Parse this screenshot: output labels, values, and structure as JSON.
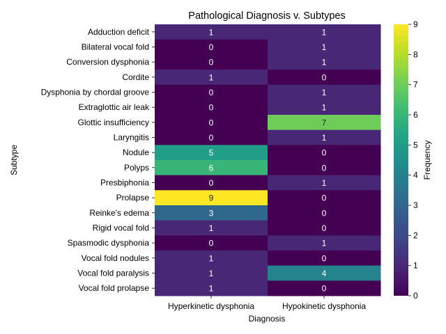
{
  "chart_data": {
    "type": "heatmap",
    "title": "Pathological Diagnosis v. Subtypes",
    "xlabel": "Diagnosis",
    "ylabel": "Subtype",
    "columns": [
      "Hyperkinetic dysphonia",
      "Hypokinetic dysphonia"
    ],
    "rows": [
      "Adduction deficit",
      "Bilateral vocal fold",
      "Conversion dysphonia",
      "Cordite",
      "Dysphonia by chordal groove",
      "Extraglottic air leak",
      "Glottic insufficiency",
      "Laryngitis",
      "Nodule",
      "Polyps",
      "Presbiphonia",
      "Prolapse",
      "Reinke's edema",
      "Rigid vocal fold",
      "Spasmodic dysphonia",
      "Vocal fold nodules",
      "Vocal fold paralysis",
      "Vocal fold prolapse"
    ],
    "values": [
      [
        1,
        1
      ],
      [
        0,
        1
      ],
      [
        0,
        1
      ],
      [
        1,
        0
      ],
      [
        0,
        1
      ],
      [
        0,
        1
      ],
      [
        0,
        7
      ],
      [
        0,
        1
      ],
      [
        5,
        0
      ],
      [
        6,
        0
      ],
      [
        0,
        1
      ],
      [
        9,
        0
      ],
      [
        3,
        0
      ],
      [
        1,
        0
      ],
      [
        0,
        1
      ],
      [
        1,
        0
      ],
      [
        1,
        4
      ],
      [
        1,
        0
      ]
    ],
    "colorbar": {
      "label": "Frequency",
      "min": 0,
      "max": 9,
      "ticks": [
        0,
        1,
        2,
        3,
        4,
        5,
        6,
        7,
        8,
        9
      ],
      "colormap": "viridis"
    }
  }
}
